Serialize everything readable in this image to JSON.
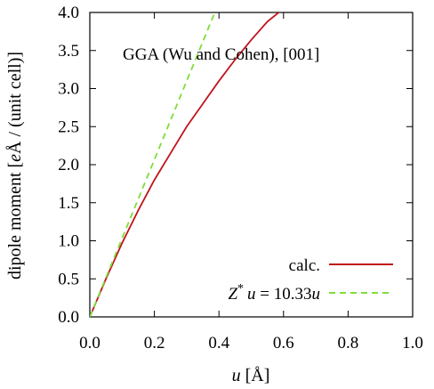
{
  "chart_data": {
    "type": "line",
    "title": "",
    "annotation": "GGA (Wu and Cohen), [001]",
    "xlabel": {
      "italic": "u",
      "rest": " [Å]"
    },
    "ylabel": {
      "pre": "dipole moment [",
      "italic": "e",
      "post": "Å / (unit cell)]"
    },
    "xlim": [
      0.0,
      1.0
    ],
    "ylim": [
      0.0,
      4.0
    ],
    "xticks": [
      0.0,
      0.2,
      0.4,
      0.6,
      0.8,
      1.0
    ],
    "xtick_labels": [
      "0.0",
      "0.2",
      "0.4",
      "0.6",
      "0.8",
      "1.0"
    ],
    "yticks": [
      0.0,
      0.5,
      1.0,
      1.5,
      2.0,
      2.5,
      3.0,
      3.5,
      4.0
    ],
    "ytick_labels": [
      "0.0",
      "0.5",
      "1.0",
      "1.5",
      "2.0",
      "2.5",
      "3.0",
      "3.5",
      "4.0"
    ],
    "grid": false,
    "legend_position": "bottom-right",
    "series": [
      {
        "name": "calc.",
        "style": "solid",
        "color": "#c0141c",
        "x": [
          0.0,
          0.05,
          0.1,
          0.15,
          0.2,
          0.25,
          0.3,
          0.35,
          0.4,
          0.45,
          0.5,
          0.55,
          0.6
        ],
        "y": [
          0.0,
          0.5,
          0.97,
          1.4,
          1.8,
          2.15,
          2.5,
          2.8,
          3.1,
          3.38,
          3.64,
          3.88,
          4.05
        ]
      },
      {
        "name": "Z* u = 10.33u",
        "legend_parts": {
          "z": "Z",
          "star": "*",
          "u1": "u",
          "mid": " = 10.33",
          "u2": "u"
        },
        "style": "dashed",
        "color": "#7fdc3c",
        "x": [
          0.0,
          0.3872
        ],
        "y": [
          0.0,
          4.0
        ]
      }
    ]
  }
}
